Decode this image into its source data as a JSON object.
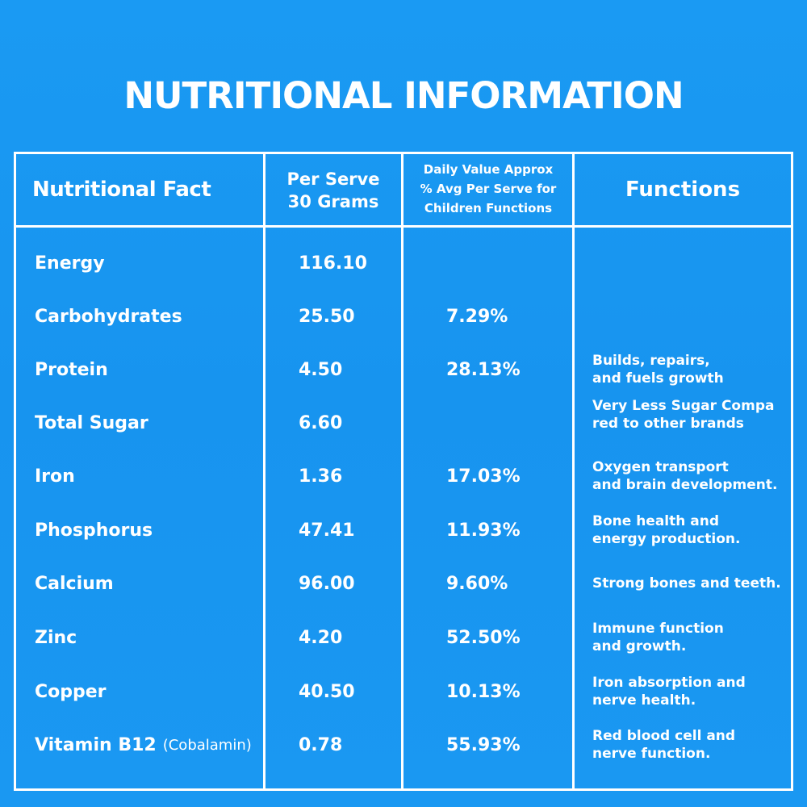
{
  "title": "NUTRITIONAL INFORMATION",
  "colors": {
    "background": "#1a98f2",
    "lines": "#ffffff",
    "text": "#ffffff"
  },
  "headers": {
    "fact": "Nutritional Fact",
    "per_serve_line1": "Per Serve",
    "per_serve_line2": "30 Grams",
    "daily_line1": "Daily Value Approx",
    "daily_line2": "% Avg Per Serve for",
    "daily_line3": "Children Functions",
    "functions": "Functions"
  },
  "rows": [
    {
      "name": "Energy",
      "note": "",
      "per_serve": "116.10",
      "daily": "",
      "func1": "",
      "func2": ""
    },
    {
      "name": "Carbohydrates",
      "note": "",
      "per_serve": "25.50",
      "daily": "7.29%",
      "func1": "",
      "func2": ""
    },
    {
      "name": "Protein",
      "note": "",
      "per_serve": "4.50",
      "daily": "28.13%",
      "func1": "Builds, repairs,",
      "func2": "and fuels growth"
    },
    {
      "name": "Total Sugar",
      "note": "",
      "per_serve": "6.60",
      "daily": "",
      "func1": "Very Less Sugar Compa",
      "func2": "red to other brands"
    },
    {
      "name": "Iron",
      "note": "",
      "per_serve": "1.36",
      "daily": "17.03%",
      "func1": "Oxygen transport",
      "func2": "and brain development."
    },
    {
      "name": "Phosphorus",
      "note": "",
      "per_serve": "47.41",
      "daily": "11.93%",
      "func1": "Bone health and",
      "func2": "energy production."
    },
    {
      "name": "Calcium",
      "note": "",
      "per_serve": "96.00",
      "daily": "9.60%",
      "func1": "Strong bones and teeth.",
      "func2": ""
    },
    {
      "name": "Zinc",
      "note": "",
      "per_serve": "4.20",
      "daily": "52.50%",
      "func1": "Immune function",
      "func2": "and growth."
    },
    {
      "name": "Copper",
      "note": "",
      "per_serve": "40.50",
      "daily": "10.13%",
      "func1": "Iron absorption and",
      "func2": "nerve health."
    },
    {
      "name": "Vitamin B12",
      "note": "(Cobalamin)",
      "per_serve": "0.78",
      "daily": "55.93%",
      "func1": "Red blood cell and",
      "func2": "nerve function."
    }
  ]
}
